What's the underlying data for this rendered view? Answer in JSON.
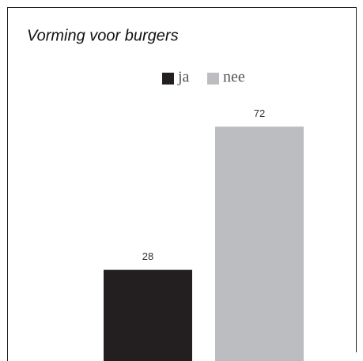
{
  "chart_data": {
    "type": "bar",
    "title": "Vorming voor burgers",
    "categories": [
      null
    ],
    "series": [
      {
        "name": "ja",
        "color": "#231f20",
        "values": [
          28
        ]
      },
      {
        "name": "nee",
        "color": "#bcbdc0",
        "values": [
          72
        ]
      }
    ],
    "legend": "top"
  }
}
